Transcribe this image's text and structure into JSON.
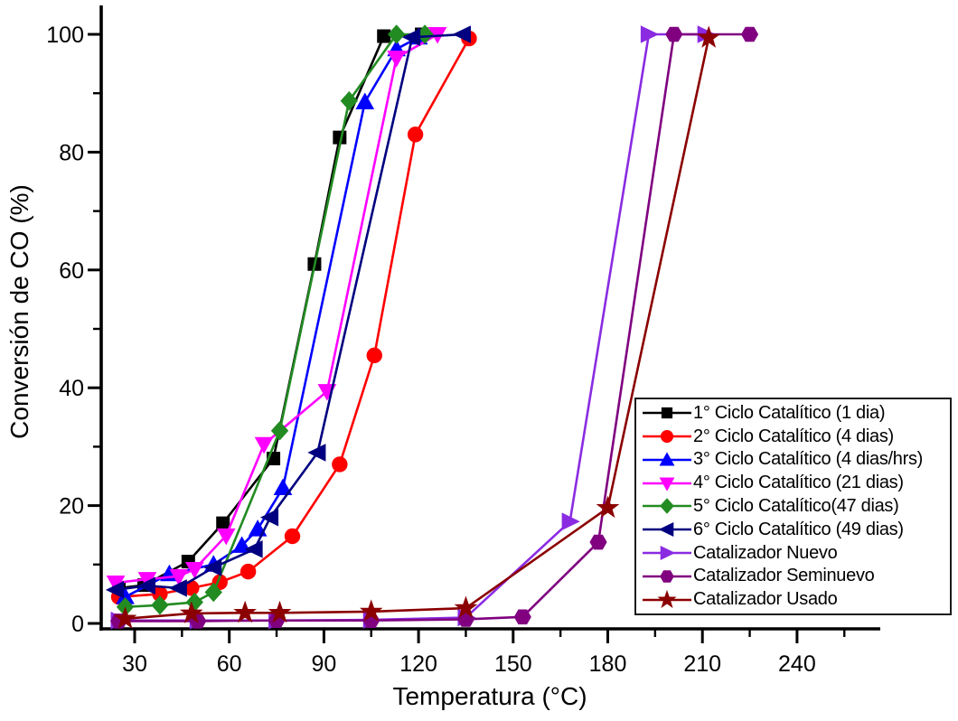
{
  "figure_background": "#ffffff",
  "chart_data": {
    "type": "line",
    "title": "",
    "xlabel": "Temperatura (°C)",
    "ylabel": "Conversión de CO (%)",
    "xlim": [
      20,
      266
    ],
    "ylim": [
      0,
      104
    ],
    "grid": false,
    "legend_position": "inside-right-middle",
    "x_major_ticks": [
      30,
      60,
      90,
      120,
      150,
      180,
      210,
      240
    ],
    "x_minor_ticks": [
      45,
      75,
      105,
      135,
      165,
      195,
      225,
      255
    ],
    "y_major_ticks": [
      0,
      20,
      40,
      60,
      80,
      100
    ],
    "y_minor_ticks": [
      10,
      30,
      50,
      70,
      90
    ],
    "axis_color": "#000000",
    "series": [
      {
        "name": "1° Ciclo Catalítico (1 dia)",
        "color": "#000000",
        "marker": "square",
        "x": [
          25,
          33,
          47,
          58,
          74,
          87,
          95,
          109,
          121
        ],
        "y": [
          6,
          6.5,
          10.5,
          17,
          28,
          61,
          82.5,
          99.7,
          100
        ]
      },
      {
        "name": "2° Ciclo Catalítico (4 dias)",
        "color": "#FF0000",
        "marker": "circle",
        "x": [
          25,
          38,
          48,
          57,
          66,
          80,
          95,
          106,
          119,
          136
        ],
        "y": [
          4.5,
          5,
          6,
          7,
          8.8,
          14.8,
          27,
          45.5,
          83,
          99.3
        ]
      },
      {
        "name": "3° Ciclo Catalítico (4 dias/hrs)",
        "color": "#0000FF",
        "marker": "triangle-up",
        "x": [
          27,
          41,
          55,
          64,
          69,
          77,
          103,
          113,
          120
        ],
        "y": [
          4.5,
          8.4,
          10,
          13.2,
          16,
          23,
          88.5,
          97.5,
          99.5
        ]
      },
      {
        "name": "4° Ciclo Catalítico (21 dias)",
        "color": "#FF00FF",
        "marker": "triangle-down",
        "x": [
          24,
          34,
          44,
          49,
          59,
          71,
          91,
          113,
          126
        ],
        "y": [
          6.9,
          7.5,
          8,
          9.2,
          14.9,
          30.4,
          39.4,
          96,
          100
        ]
      },
      {
        "name": "5° Ciclo Catalítico(47 dias)",
        "color": "#228B22",
        "marker": "diamond",
        "x": [
          27,
          38,
          49,
          55,
          76,
          98,
          113,
          122
        ],
        "y": [
          2.8,
          3.1,
          3.6,
          5.3,
          32.7,
          88.7,
          100,
          100
        ]
      },
      {
        "name": "6° Ciclo Catalítico (49 dias)",
        "color": "#000080",
        "marker": "triangle-left",
        "x": [
          24,
          34,
          44,
          55,
          68,
          73,
          88,
          118,
          134
        ],
        "y": [
          5.7,
          6.4,
          6,
          9.5,
          12.6,
          18,
          29,
          99.5,
          100
        ]
      },
      {
        "name": "Catalizador Nuevo",
        "color": "#8A2BE2",
        "marker": "triangle-right",
        "x": [
          25,
          50,
          75,
          105,
          135,
          168,
          193,
          211
        ],
        "y": [
          0.5,
          0.5,
          0.5,
          0.6,
          1,
          17.3,
          100,
          100
        ]
      },
      {
        "name": "Catalizador Seminuevo",
        "color": "#800080",
        "marker": "hexagon",
        "x": [
          25,
          50,
          75,
          105,
          135,
          153,
          177,
          201,
          225
        ],
        "y": [
          0.4,
          0.4,
          0.5,
          0.5,
          0.7,
          1.1,
          13.8,
          100,
          100
        ]
      },
      {
        "name": "Catalizador Usado",
        "color": "#8B0000",
        "marker": "star",
        "x": [
          27,
          48,
          65,
          76,
          105,
          135,
          180,
          212
        ],
        "y": [
          0.8,
          1.7,
          1.8,
          1.8,
          2,
          2.6,
          19.6,
          99.4
        ]
      }
    ]
  }
}
